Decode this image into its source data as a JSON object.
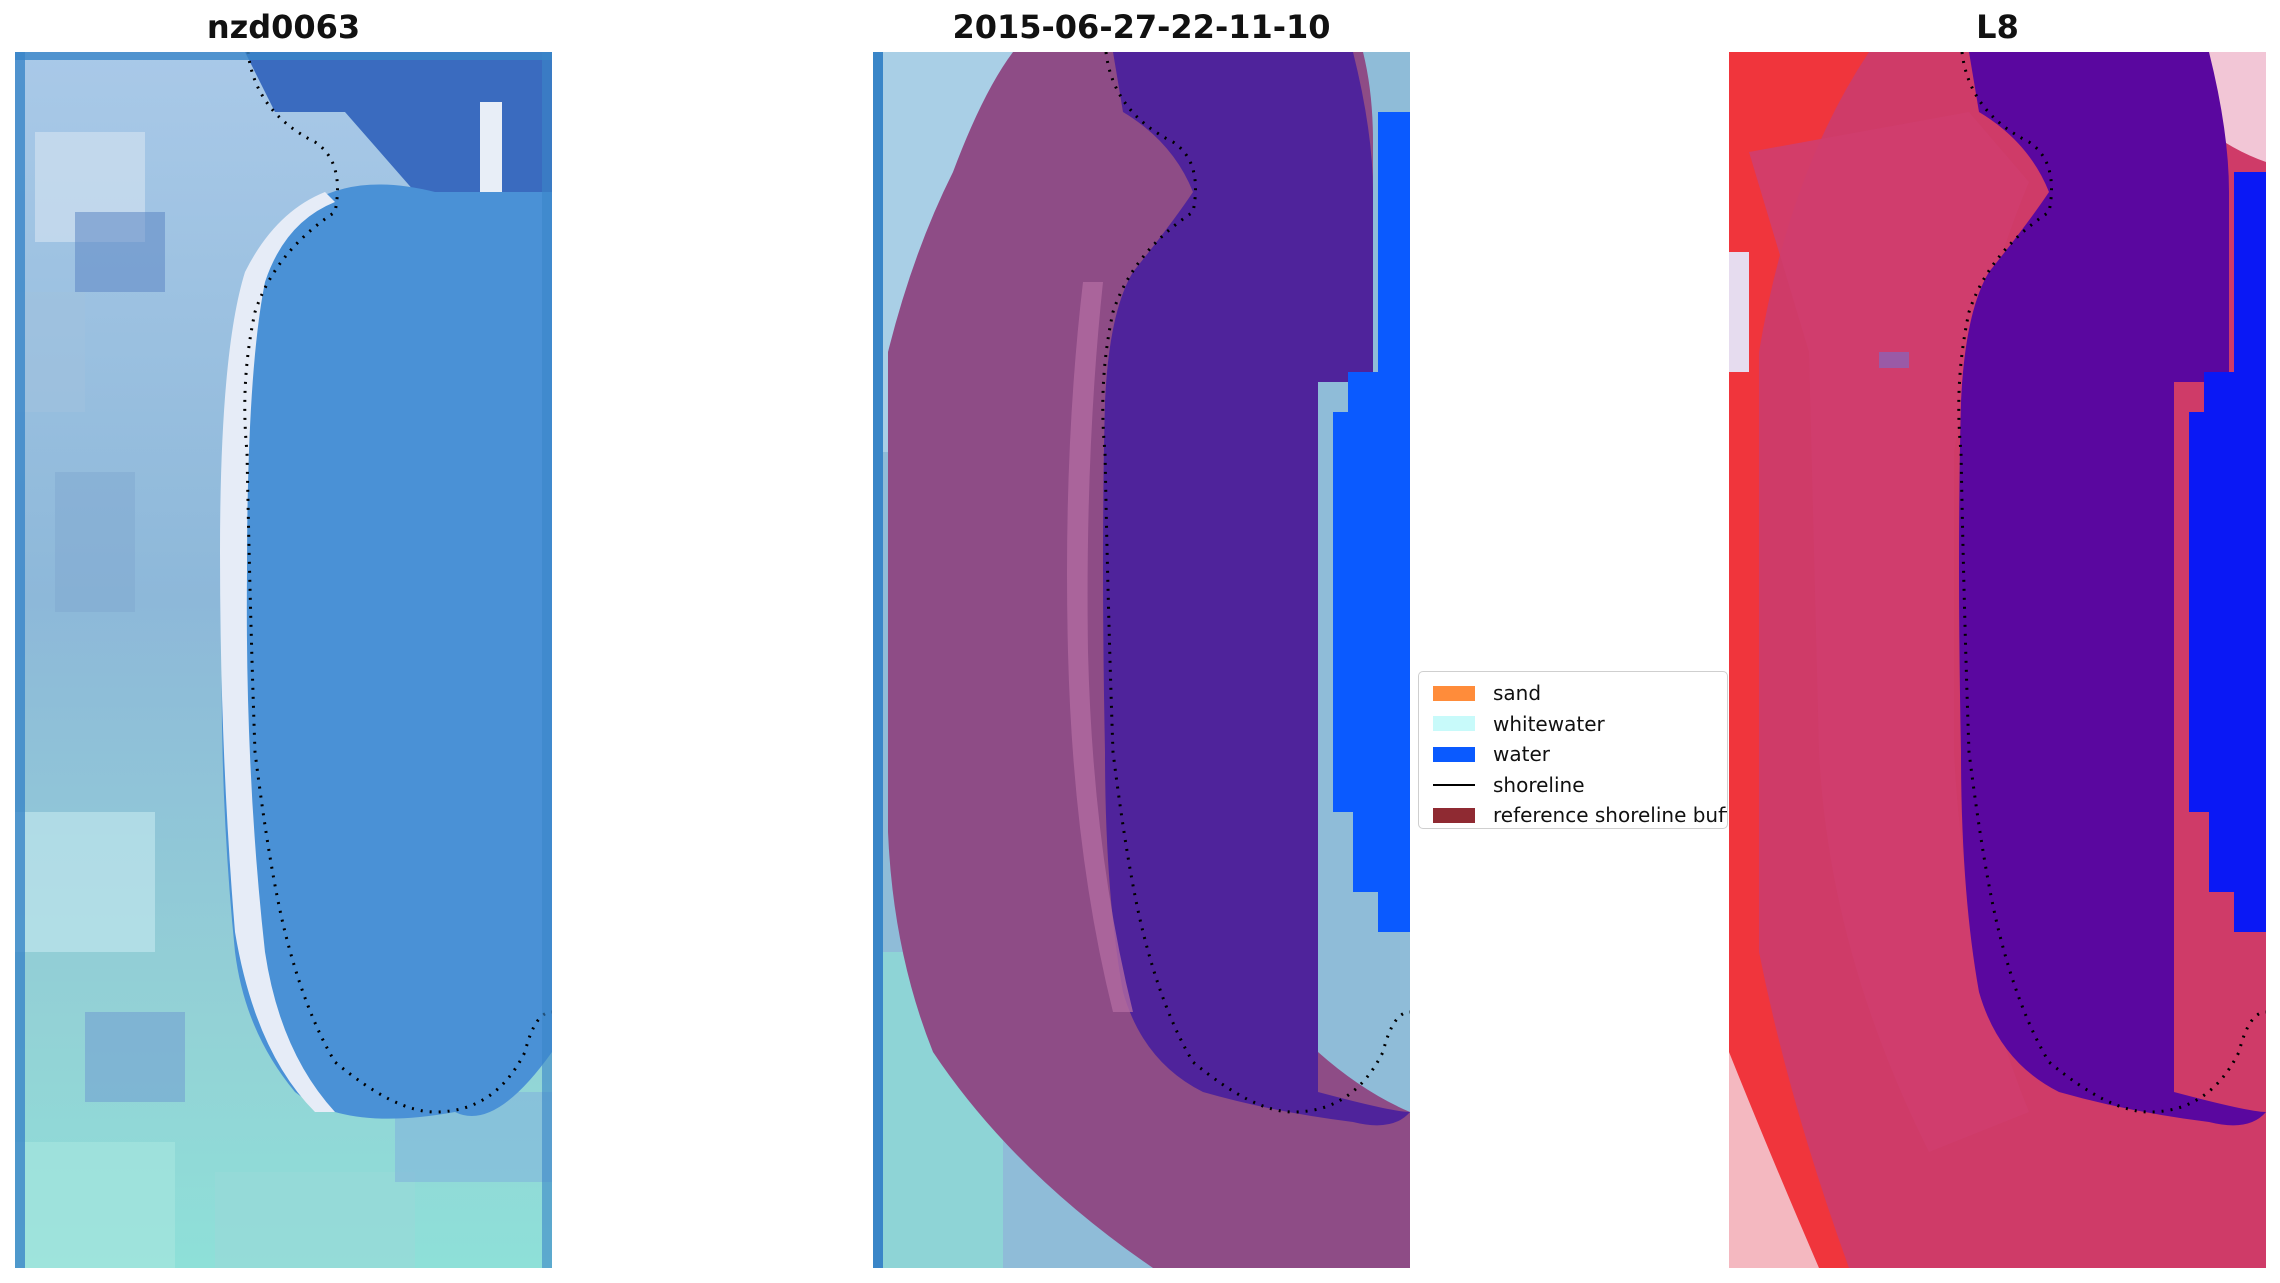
{
  "panels": [
    {
      "title": "nzd0063"
    },
    {
      "title": "2015-06-27-22-11-10"
    },
    {
      "title": "L8"
    }
  ],
  "legend": {
    "items": [
      {
        "label": "sand",
        "color": "#ff8c3a",
        "kind": "patch"
      },
      {
        "label": "whitewater",
        "color": "#c8fafa",
        "kind": "patch"
      },
      {
        "label": "water",
        "color": "#0a5aff",
        "kind": "patch"
      },
      {
        "label": "shoreline",
        "color": "#000000",
        "kind": "line"
      },
      {
        "label": "reference shoreline buffer",
        "color": "#8f2a32",
        "kind": "patch"
      }
    ]
  },
  "colors": {
    "rgb_water": "#4a8fd6",
    "rgb_land": "#8fbcd8",
    "rgb_beach": "#dfe6f2",
    "class_water": "#4f239b",
    "class_sea": "#0a5aff",
    "class_buffer": "#8e4c86",
    "nir_land": "#cf3b68",
    "nir_water": "#5a079f",
    "nir_sea": "#0a18f5"
  }
}
